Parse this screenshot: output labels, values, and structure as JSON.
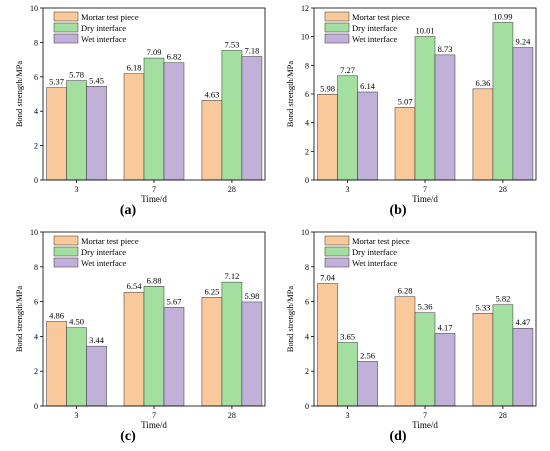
{
  "figure": {
    "colors": [
      "#f9c89b",
      "#a3e0a0",
      "#c1b0d8"
    ],
    "panels": [
      "(a)",
      "(b)",
      "(c)",
      "(d)"
    ]
  },
  "chart_data": [
    {
      "type": "bar",
      "panel": "(a)",
      "xlabel": "Time/d",
      "ylabel": "Bond strength/MPa",
      "categories": [
        "3",
        "7",
        "28"
      ],
      "ylim": [
        0,
        10
      ],
      "yticks": [
        0,
        2,
        4,
        6,
        8,
        10
      ],
      "legend_position": "top-left",
      "series": [
        {
          "name": "Mortar test piece",
          "values": [
            5.37,
            6.18,
            4.63
          ],
          "labels": [
            "5.37",
            "6.18",
            "4.63"
          ]
        },
        {
          "name": "Dry interface",
          "values": [
            5.78,
            7.09,
            7.53
          ],
          "labels": [
            "5.78",
            "7.09",
            "7.53"
          ]
        },
        {
          "name": "Wet interface",
          "values": [
            5.45,
            6.82,
            7.18
          ],
          "labels": [
            "5.45",
            "6.82",
            "7.18"
          ]
        }
      ]
    },
    {
      "type": "bar",
      "panel": "(b)",
      "xlabel": "Time/d",
      "ylabel": "Bond strength/MPa",
      "categories": [
        "3",
        "7",
        "28"
      ],
      "ylim": [
        0,
        12
      ],
      "yticks": [
        0,
        2,
        4,
        6,
        8,
        10,
        12
      ],
      "legend_position": "top-left",
      "series": [
        {
          "name": "Mortar test piece",
          "values": [
            5.98,
            5.07,
            6.36
          ],
          "labels": [
            "5.98",
            "5.07",
            "6.36"
          ]
        },
        {
          "name": "Dry interface",
          "values": [
            7.27,
            10.01,
            10.99
          ],
          "labels": [
            "7.27",
            "10.01",
            "10.99"
          ]
        },
        {
          "name": "Wet interface",
          "values": [
            6.14,
            8.73,
            9.24
          ],
          "labels": [
            "6.14",
            "8.73",
            "9.24"
          ]
        }
      ]
    },
    {
      "type": "bar",
      "panel": "(c)",
      "xlabel": "Time/d",
      "ylabel": "Bond strength/MPa",
      "categories": [
        "3",
        "7",
        "28"
      ],
      "ylim": [
        0,
        10
      ],
      "yticks": [
        0,
        2,
        4,
        6,
        8,
        10
      ],
      "legend_position": "top-left",
      "series": [
        {
          "name": "Mortar test piece",
          "values": [
            4.86,
            6.54,
            6.25
          ],
          "labels": [
            "4.86",
            "6.54",
            "6.25"
          ]
        },
        {
          "name": "Dry interface",
          "values": [
            4.5,
            6.88,
            7.12
          ],
          "labels": [
            "4.50",
            "6.88",
            "7.12"
          ]
        },
        {
          "name": "Wet interface",
          "values": [
            3.44,
            5.67,
            5.98
          ],
          "labels": [
            "3.44",
            "5.67",
            "5.98"
          ]
        }
      ]
    },
    {
      "type": "bar",
      "panel": "(d)",
      "xlabel": "Time/d",
      "ylabel": "Bond strength/MPa",
      "categories": [
        "3",
        "7",
        "28"
      ],
      "ylim": [
        0,
        10
      ],
      "yticks": [
        0,
        2,
        4,
        6,
        8,
        10
      ],
      "legend_position": "top-left",
      "series": [
        {
          "name": "Mortar test piece",
          "values": [
            7.04,
            6.28,
            5.33
          ],
          "labels": [
            "7.04",
            "6.28",
            "5.33"
          ]
        },
        {
          "name": "Dry interface",
          "values": [
            3.65,
            5.36,
            5.82
          ],
          "labels": [
            "3.65",
            "5.36",
            "5.82"
          ]
        },
        {
          "name": "Wet interface",
          "values": [
            2.56,
            4.17,
            4.47
          ],
          "labels": [
            "2.56",
            "4.17",
            "4.47"
          ]
        }
      ]
    }
  ]
}
